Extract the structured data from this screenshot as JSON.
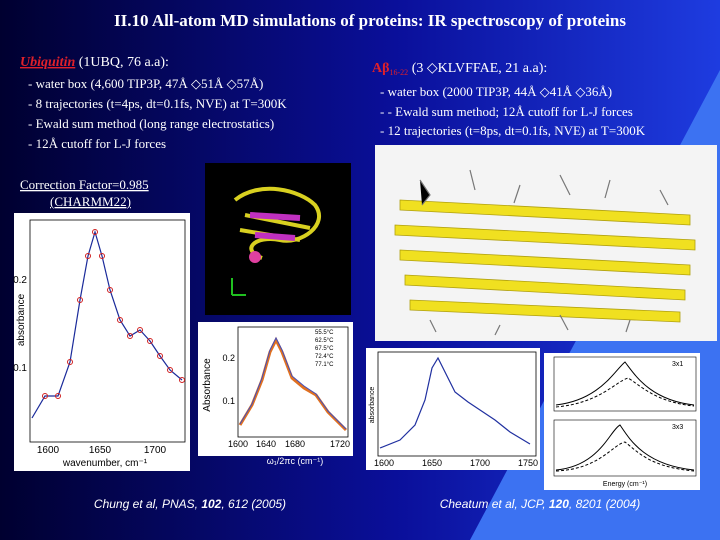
{
  "title": "II.10 All-atom MD simulations of proteins: IR spectroscopy of proteins",
  "left": {
    "name": "Ubiquitin",
    "heading": " (1UBQ, 76 a.a):",
    "bullets": [
      "- water box (4,600 TIP3P, 47Å ◇51Å ◇57Å)",
      "- 8 trajectories (t=4ps, dt=0.1fs, NVE) at T=300K",
      "- Ewald sum method (long range electrostatics)",
      "- 12Å cutoff  for L-J forces"
    ],
    "correction": [
      "Correction Factor=0.985",
      "(CHARMM22)"
    ],
    "citation": {
      "before": "Chung et al, PNAS, ",
      "volume": "102",
      "after": ", 612 (2005)"
    }
  },
  "right": {
    "name": "A",
    "greek": "β",
    "range": "16-22",
    "heading": " (3 ◇KLVFFAE, 21 a.a):",
    "bullets": [
      "- water box (2000 TIP3P, 44Å ◇41Å ◇36Å)",
      "- - Ewald sum method; 12Å cutoff  for L-J forces",
      "- 12 trajectories (t=8ps, dt=0.1fs, NVE) at T=300K"
    ],
    "citation": {
      "before": "Cheatum et al, JCP, ",
      "volume": "120",
      "after": ", 8201 (2004)"
    }
  },
  "plot_left": {
    "ylabel": "absorbance",
    "xlabel": "wavenumber, cm⁻¹",
    "yticks": [
      "0.2",
      "0.1"
    ],
    "xticks": [
      "1600",
      "1650",
      "1700"
    ]
  },
  "plot_mid": {
    "ylabel": "Absorbance",
    "xlabel": "ω₁/2πc (cm⁻¹)",
    "yticks": [
      "0.2",
      "0.1"
    ],
    "xticks": [
      "1600",
      "1640",
      "1680",
      "1720"
    ],
    "legend": [
      "55.5°C",
      "62.5°C",
      "67.5°C",
      "72.4°C",
      "77.1°C"
    ]
  },
  "plot_right": {
    "ylabel": "absorbance",
    "xticks": [
      "1600",
      "1650",
      "1700",
      "1750"
    ]
  },
  "plot_small": {
    "labels": [
      "3x1",
      "3x3"
    ],
    "xlabel": "Energy (cm⁻¹)"
  }
}
